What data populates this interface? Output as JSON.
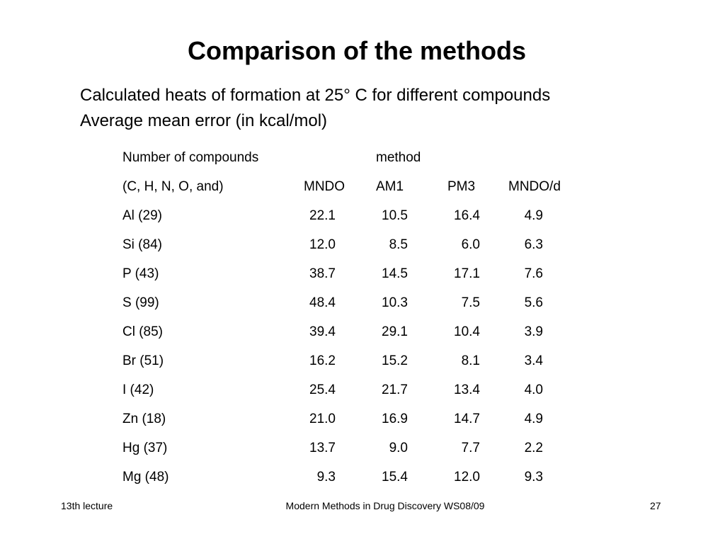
{
  "slide": {
    "title": "Comparison of the methods",
    "subtitle_lines": [
      "Calculated heats of formation at 25° C for different compounds",
      "Average mean error (in kcal/mol)"
    ]
  },
  "table": {
    "header1": {
      "col0": "Number of compounds",
      "group": "method"
    },
    "header2": [
      "(C, H, N, O, and)",
      "MNDO",
      "AM1",
      "PM3",
      "MNDO/d"
    ],
    "rows": [
      [
        "Al (29)",
        "22.1",
        "10.5",
        "16.4",
        "4.9"
      ],
      [
        "Si (84)",
        "12.0",
        "8.5",
        "6.0",
        "6.3"
      ],
      [
        "P (43)",
        "38.7",
        "14.5",
        "17.1",
        "7.6"
      ],
      [
        "S (99)",
        "48.4",
        "10.3",
        "7.5",
        "5.6"
      ],
      [
        "Cl (85)",
        "39.4",
        "29.1",
        "10.4",
        "3.9"
      ],
      [
        "Br (51)",
        "16.2",
        "15.2",
        "8.1",
        "3.4"
      ],
      [
        "I (42)",
        "25.4",
        "21.7",
        "13.4",
        "4.0"
      ],
      [
        "Zn (18)",
        "21.0",
        "16.9",
        "14.7",
        "4.9"
      ],
      [
        "Hg (37)",
        "13.7",
        "9.0",
        "7.7",
        "2.2"
      ],
      [
        "Mg (48)",
        "9.3",
        "15.4",
        "12.0",
        "9.3"
      ]
    ]
  },
  "footer": {
    "left": "13th lecture",
    "center": "Modern Methods in Drug Discovery WS08/09",
    "right": "27"
  }
}
